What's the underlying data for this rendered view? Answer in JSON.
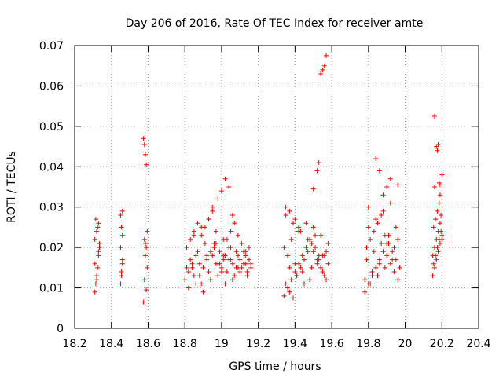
{
  "chart_data": {
    "type": "scatter",
    "title": "Day 206 of 2016, Rate Of TEC Index for receiver amte",
    "xlabel": "GPS time / hours",
    "ylabel": "ROTI / TECUs",
    "xlim": [
      18.2,
      20.4
    ],
    "ylim": [
      0,
      0.07
    ],
    "x_ticks": [
      "18.2",
      "18.4",
      "18.6",
      "18.8",
      "19",
      "19.2",
      "19.4",
      "19.6",
      "19.8",
      "20",
      "20.2",
      "20.4"
    ],
    "y_ticks": [
      "0",
      "0.01",
      "0.02",
      "0.03",
      "0.04",
      "0.05",
      "0.06",
      "0.07"
    ],
    "grid": true,
    "marker": "+",
    "color": "#ff0000",
    "series": [
      {
        "name": "ROTI",
        "x": [
          18.31,
          18.315,
          18.32,
          18.325,
          18.33,
          18.335,
          18.31,
          18.32,
          18.33,
          18.315,
          18.325,
          18.335,
          18.31,
          18.32,
          18.33,
          18.45,
          18.455,
          18.46,
          18.45,
          18.46,
          18.455,
          18.45,
          18.46,
          18.455,
          18.46,
          18.575,
          18.58,
          18.585,
          18.59,
          18.595,
          18.58,
          18.59,
          18.585,
          18.595,
          18.58,
          18.59,
          18.575,
          18.585,
          18.8,
          18.82,
          18.84,
          18.86,
          18.88,
          18.9,
          18.92,
          18.94,
          18.96,
          18.98,
          19.0,
          19.02,
          19.04,
          19.06,
          19.08,
          19.1,
          19.12,
          19.14,
          19.16,
          18.81,
          18.83,
          18.85,
          18.87,
          18.89,
          18.91,
          18.93,
          18.95,
          18.97,
          18.99,
          19.01,
          19.03,
          19.05,
          19.07,
          19.09,
          19.11,
          19.13,
          19.15,
          18.82,
          18.86,
          18.9,
          18.94,
          18.98,
          19.02,
          19.06,
          19.1,
          19.14,
          18.84,
          18.88,
          18.92,
          18.96,
          19.0,
          19.04,
          19.08,
          19.12,
          19.16,
          18.83,
          18.87,
          18.91,
          18.95,
          18.99,
          19.03,
          19.07,
          19.11,
          19.15,
          18.85,
          18.89,
          18.93,
          18.97,
          19.01,
          19.05,
          19.09,
          19.13,
          18.81,
          18.85,
          18.89,
          18.93,
          18.97,
          19.01,
          19.05,
          19.09,
          19.13,
          18.95,
          18.98,
          19.0,
          19.02,
          19.04,
          19.06,
          19.34,
          19.36,
          19.38,
          19.4,
          19.42,
          19.44,
          19.46,
          19.48,
          19.5,
          19.52,
          19.54,
          19.56,
          19.58,
          19.35,
          19.37,
          19.39,
          19.41,
          19.43,
          19.45,
          19.47,
          19.49,
          19.51,
          19.53,
          19.55,
          19.57,
          19.34,
          19.38,
          19.42,
          19.46,
          19.5,
          19.54,
          19.58,
          19.36,
          19.4,
          19.44,
          19.48,
          19.52,
          19.56,
          19.35,
          19.39,
          19.43,
          19.47,
          19.51,
          19.55,
          19.37,
          19.41,
          19.45,
          19.49,
          19.53,
          19.57,
          19.35,
          19.37,
          19.4,
          19.42,
          19.5,
          19.52,
          19.53,
          19.54,
          19.55,
          19.56,
          19.57,
          19.78,
          19.8,
          19.82,
          19.84,
          19.86,
          19.88,
          19.9,
          19.92,
          19.94,
          19.96,
          19.79,
          19.81,
          19.83,
          19.85,
          19.87,
          19.89,
          19.91,
          19.93,
          19.95,
          19.97,
          19.78,
          19.82,
          19.86,
          19.9,
          19.94,
          19.8,
          19.84,
          19.88,
          19.92,
          19.96,
          19.79,
          19.83,
          19.87,
          19.91,
          19.95,
          19.81,
          19.85,
          19.89,
          19.93,
          19.8,
          19.84,
          19.86,
          19.88,
          19.9,
          19.92,
          19.96,
          20.15,
          20.16,
          20.17,
          20.18,
          20.19,
          20.2,
          20.15,
          20.16,
          20.17,
          20.18,
          20.19,
          20.2,
          20.155,
          20.165,
          20.175,
          20.185,
          20.195,
          20.155,
          20.165,
          20.175,
          20.185,
          20.195,
          20.16,
          20.17,
          20.175,
          20.18,
          20.185,
          20.19,
          20.2,
          20.16,
          20.19
        ],
        "y": [
          0.009,
          0.011,
          0.013,
          0.015,
          0.018,
          0.02,
          0.022,
          0.024,
          0.026,
          0.027,
          0.025,
          0.021,
          0.016,
          0.012,
          0.019,
          0.011,
          0.014,
          0.017,
          0.02,
          0.023,
          0.025,
          0.028,
          0.029,
          0.013,
          0.016,
          0.047,
          0.0455,
          0.043,
          0.0405,
          0.024,
          0.022,
          0.02,
          0.018,
          0.015,
          0.012,
          0.0095,
          0.0065,
          0.021,
          0.012,
          0.014,
          0.016,
          0.018,
          0.013,
          0.015,
          0.017,
          0.019,
          0.021,
          0.016,
          0.014,
          0.018,
          0.02,
          0.016,
          0.015,
          0.017,
          0.019,
          0.014,
          0.016,
          0.02,
          0.022,
          0.024,
          0.026,
          0.023,
          0.025,
          0.027,
          0.029,
          0.021,
          0.019,
          0.017,
          0.022,
          0.024,
          0.026,
          0.023,
          0.021,
          0.018,
          0.02,
          0.01,
          0.011,
          0.009,
          0.012,
          0.013,
          0.011,
          0.012,
          0.014,
          0.013,
          0.015,
          0.016,
          0.018,
          0.02,
          0.015,
          0.017,
          0.019,
          0.016,
          0.015,
          0.017,
          0.019,
          0.021,
          0.018,
          0.016,
          0.014,
          0.013,
          0.015,
          0.017,
          0.023,
          0.025,
          0.027,
          0.024,
          0.022,
          0.02,
          0.018,
          0.016,
          0.015,
          0.013,
          0.011,
          0.014,
          0.016,
          0.018,
          0.017,
          0.015,
          0.019,
          0.03,
          0.032,
          0.034,
          0.037,
          0.035,
          0.028,
          0.008,
          0.01,
          0.012,
          0.014,
          0.016,
          0.018,
          0.02,
          0.022,
          0.019,
          0.017,
          0.015,
          0.013,
          0.016,
          0.011,
          0.009,
          0.0075,
          0.013,
          0.015,
          0.017,
          0.019,
          0.021,
          0.023,
          0.018,
          0.014,
          0.012,
          0.02,
          0.022,
          0.024,
          0.026,
          0.025,
          0.023,
          0.021,
          0.018,
          0.016,
          0.014,
          0.012,
          0.016,
          0.018,
          0.028,
          0.026,
          0.024,
          0.022,
          0.02,
          0.018,
          0.015,
          0.013,
          0.011,
          0.015,
          0.017,
          0.019,
          0.03,
          0.029,
          0.027,
          0.025,
          0.0345,
          0.039,
          0.041,
          0.063,
          0.064,
          0.065,
          0.0675,
          0.009,
          0.011,
          0.013,
          0.015,
          0.017,
          0.019,
          0.021,
          0.016,
          0.014,
          0.012,
          0.02,
          0.022,
          0.024,
          0.026,
          0.028,
          0.023,
          0.021,
          0.019,
          0.017,
          0.015,
          0.012,
          0.014,
          0.016,
          0.018,
          0.02,
          0.025,
          0.027,
          0.029,
          0.031,
          0.022,
          0.017,
          0.019,
          0.021,
          0.023,
          0.025,
          0.011,
          0.013,
          0.015,
          0.017,
          0.03,
          0.042,
          0.039,
          0.033,
          0.035,
          0.037,
          0.0355,
          0.013,
          0.015,
          0.017,
          0.019,
          0.021,
          0.023,
          0.018,
          0.02,
          0.022,
          0.024,
          0.026,
          0.022,
          0.016,
          0.018,
          0.02,
          0.022,
          0.024,
          0.025,
          0.027,
          0.029,
          0.031,
          0.028,
          0.0525,
          0.045,
          0.044,
          0.0455,
          0.036,
          0.0355,
          0.038,
          0.035,
          0.033
        ]
      }
    ]
  }
}
